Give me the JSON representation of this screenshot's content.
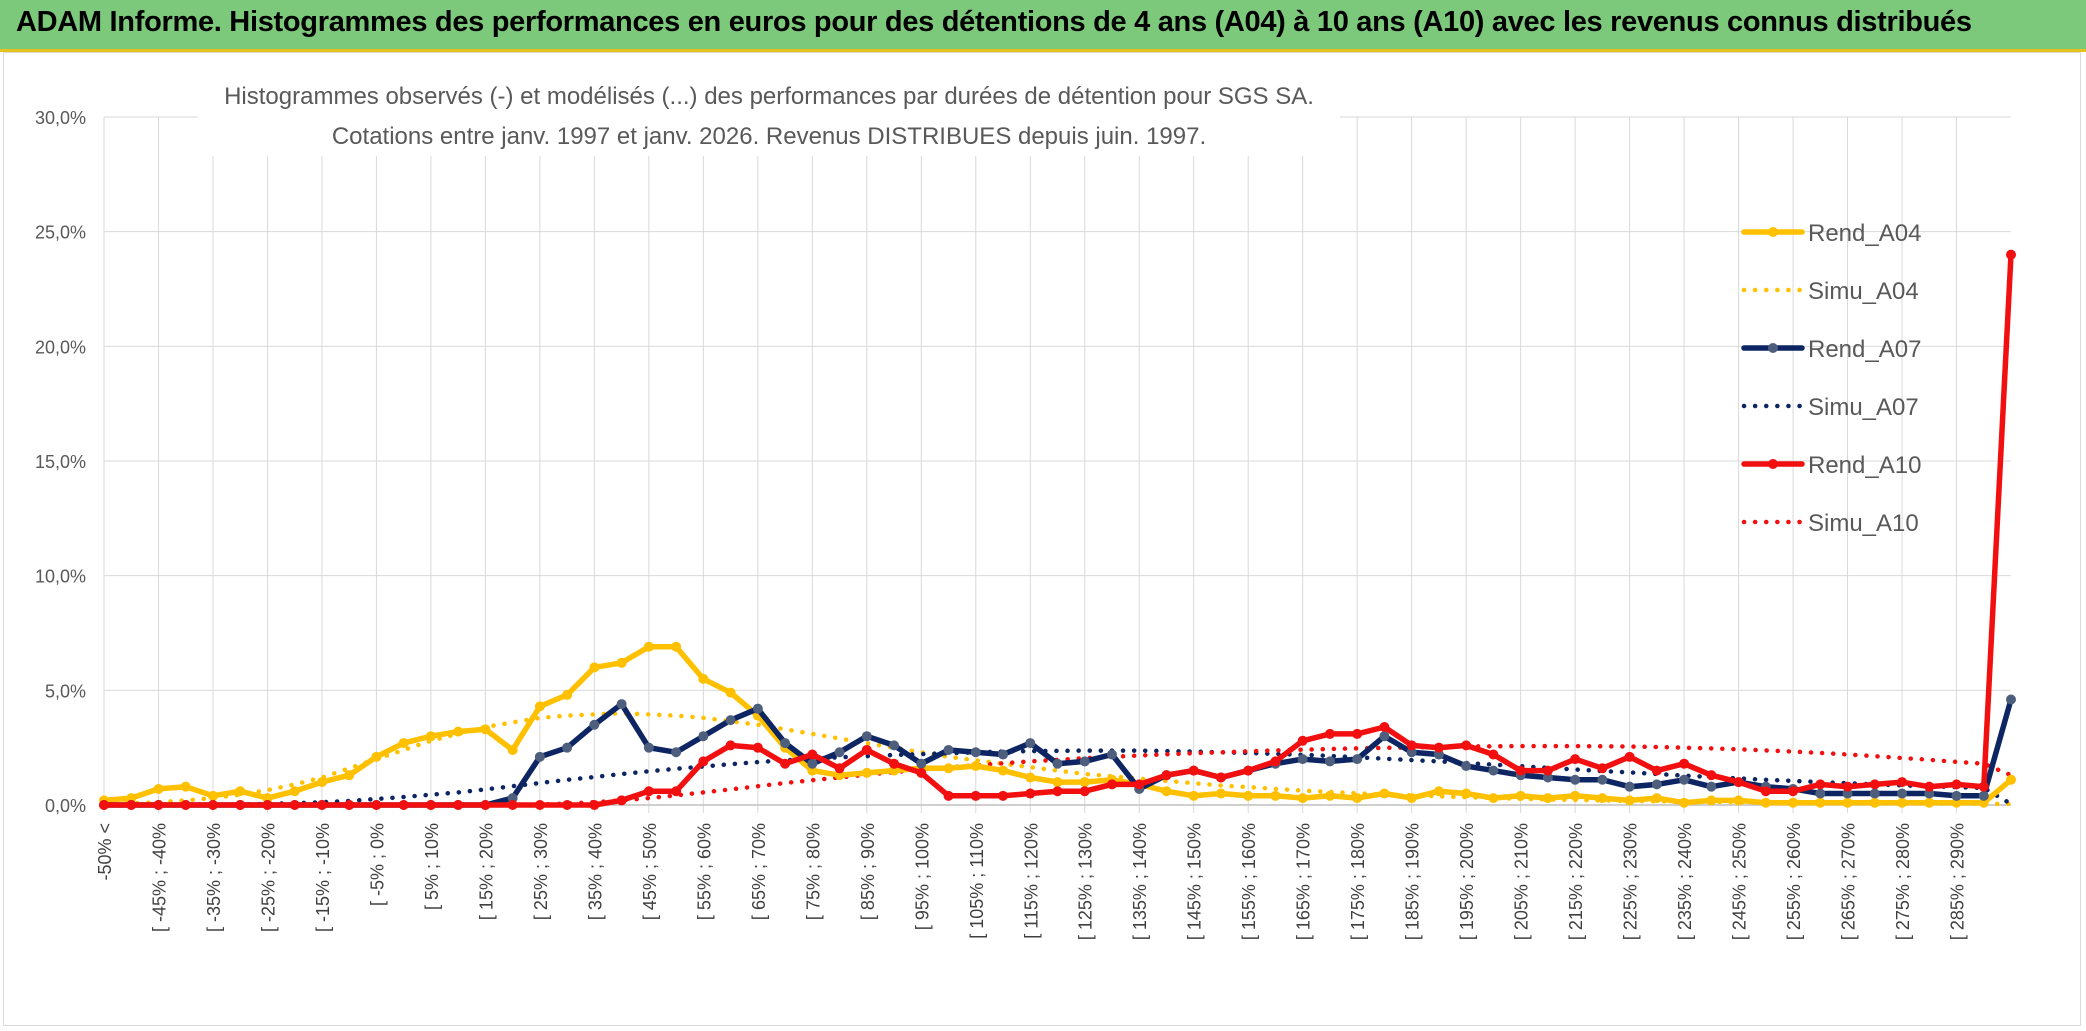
{
  "header": {
    "title": "ADAM Informe. Histogrammes des performances en euros pour des détentions de 4 ans (A04) à 10 ans (A10) avec les revenus connus distribués"
  },
  "colors": {
    "A04": "#ffc000",
    "A07": "#0d2562",
    "A07_marker": "#4e5f7d",
    "A10": "#f20f0f",
    "grid": "#d9d9d9",
    "banner": "#7dc97b"
  },
  "chart_data": {
    "type": "line",
    "title": "Histogrammes observés (-) et modélisés (...) des performances par durées de détention pour SGS SA.",
    "subtitle": "Cotations entre janv. 1997 et janv. 2026. Revenus DISTRIBUES depuis juin. 1997.",
    "xlabel": "",
    "ylabel": "",
    "ylim": [
      0,
      30
    ],
    "y_ticks": [
      "0,0%",
      "5,0%",
      "10,0%",
      "15,0%",
      "20,0%",
      "25,0%",
      "30,0%"
    ],
    "x_tick_labels": [
      "-50% <",
      "[ -45% ; -40%",
      "[ -35% ; -30%",
      "[ -25% ; -20%",
      "[ -15% ; -10%",
      "[ -5% ; 0%",
      "[ 5% ; 10%",
      "[ 15% ; 20%",
      "[ 25% ; 30%",
      "[ 35% ; 40%",
      "[ 45% ; 50%",
      "[ 55% ; 60%",
      "[ 65% ; 70%",
      "[ 75% ; 80%",
      "[ 85% ; 90%",
      "[ 95% ; 100%",
      "[ 105% ; 110%",
      "[ 115% ; 120%",
      "[ 125% ; 130%",
      "[ 135% ; 140%",
      "[ 145% ; 150%",
      "[ 155% ; 160%",
      "[ 165% ; 170%",
      "[ 175% ; 180%",
      "[ 185% ; 190%",
      "[ 195% ; 200%",
      "[ 205% ; 210%",
      "[ 215% ; 220%",
      "[ 225% ; 230%",
      "[ 235% ; 240%",
      "[ 245% ; 250%",
      "[ 255% ; 260%",
      "[ 265% ; 270%",
      "[ 275% ; 280%",
      "[ 285% ; 290%"
    ],
    "legend_position": "right",
    "series": [
      {
        "name": "Rend_A04",
        "style": "solid",
        "color": "#ffc000",
        "values": [
          0.2,
          0.3,
          0.7,
          0.8,
          0.4,
          0.6,
          0.3,
          0.6,
          1.0,
          1.3,
          2.1,
          2.7,
          3.0,
          3.2,
          3.3,
          2.4,
          4.3,
          4.8,
          6.0,
          6.2,
          6.9,
          6.9,
          5.5,
          4.9,
          3.9,
          2.5,
          1.5,
          1.3,
          1.4,
          1.5,
          1.6,
          1.6,
          1.7,
          1.5,
          1.2,
          1.0,
          1.0,
          1.1,
          0.9,
          0.6,
          0.4,
          0.5,
          0.4,
          0.4,
          0.3,
          0.4,
          0.3,
          0.5,
          0.3,
          0.6,
          0.5,
          0.3,
          0.4,
          0.3,
          0.4,
          0.3,
          0.2,
          0.3,
          0.1,
          0.2,
          0.2,
          0.1,
          0.1,
          0.1,
          0.1,
          0.1,
          0.1,
          0.1,
          0.1,
          0.1,
          1.1
        ]
      },
      {
        "name": "Simu_A04",
        "style": "dotted",
        "color": "#ffc000",
        "values": [
          0.05,
          0.08,
          0.12,
          0.2,
          0.3,
          0.45,
          0.65,
          0.9,
          1.2,
          1.6,
          2.0,
          2.4,
          2.8,
          3.1,
          3.4,
          3.6,
          3.8,
          3.9,
          3.95,
          4.0,
          3.95,
          3.9,
          3.8,
          3.65,
          3.5,
          3.3,
          3.1,
          2.9,
          2.7,
          2.5,
          2.3,
          2.1,
          1.95,
          1.8,
          1.65,
          1.5,
          1.35,
          1.25,
          1.15,
          1.05,
          0.95,
          0.85,
          0.78,
          0.7,
          0.63,
          0.57,
          0.51,
          0.46,
          0.42,
          0.38,
          0.34,
          0.3,
          0.27,
          0.24,
          0.22,
          0.2,
          0.18,
          0.16,
          0.14,
          0.13,
          0.12,
          0.11,
          0.1,
          0.09,
          0.08,
          0.07,
          0.07,
          0.06,
          0.06,
          0.05,
          0.05
        ]
      },
      {
        "name": "Rend_A07",
        "style": "solid",
        "color": "#0d2562",
        "values": [
          0,
          0,
          0,
          0,
          0,
          0,
          0,
          0,
          0,
          0,
          0,
          0,
          0,
          0,
          0,
          0.3,
          2.1,
          2.5,
          3.5,
          4.4,
          2.5,
          2.3,
          3.0,
          3.7,
          4.2,
          2.7,
          1.8,
          2.3,
          3.0,
          2.6,
          1.8,
          2.4,
          2.3,
          2.2,
          2.7,
          1.8,
          1.9,
          2.2,
          0.7,
          1.3,
          1.5,
          1.2,
          1.5,
          1.8,
          2.0,
          1.9,
          2.0,
          3.0,
          2.3,
          2.2,
          1.7,
          1.5,
          1.3,
          1.2,
          1.1,
          1.1,
          0.8,
          0.9,
          1.1,
          0.8,
          1.0,
          0.8,
          0.7,
          0.5,
          0.5,
          0.5,
          0.5,
          0.5,
          0.4,
          0.4,
          4.6
        ]
      },
      {
        "name": "Simu_A07",
        "style": "dotted",
        "color": "#0d2562",
        "values": [
          0,
          0,
          0,
          0,
          0,
          0.02,
          0.05,
          0.08,
          0.12,
          0.18,
          0.26,
          0.35,
          0.45,
          0.55,
          0.68,
          0.82,
          0.96,
          1.1,
          1.22,
          1.35,
          1.47,
          1.58,
          1.68,
          1.78,
          1.87,
          1.95,
          2.02,
          2.08,
          2.13,
          2.18,
          2.22,
          2.26,
          2.3,
          2.33,
          2.35,
          2.36,
          2.37,
          2.37,
          2.37,
          2.35,
          2.33,
          2.3,
          2.27,
          2.23,
          2.19,
          2.14,
          2.08,
          2.02,
          1.96,
          1.9,
          1.83,
          1.76,
          1.69,
          1.62,
          1.55,
          1.48,
          1.42,
          1.35,
          1.28,
          1.22,
          1.16,
          1.1,
          1.05,
          1.0,
          0.95,
          0.9,
          0.86,
          0.82,
          0.78,
          0.74,
          0.05
        ]
      },
      {
        "name": "Rend_A10",
        "style": "solid",
        "color": "#f20f0f",
        "values": [
          0,
          0,
          0,
          0,
          0,
          0,
          0,
          0,
          0,
          0,
          0,
          0,
          0,
          0,
          0,
          0,
          0,
          0,
          0,
          0.2,
          0.6,
          0.6,
          1.9,
          2.6,
          2.5,
          1.8,
          2.2,
          1.6,
          2.4,
          1.8,
          1.4,
          0.4,
          0.4,
          0.4,
          0.5,
          0.6,
          0.6,
          0.9,
          0.9,
          1.3,
          1.5,
          1.2,
          1.5,
          1.9,
          2.8,
          3.1,
          3.1,
          3.4,
          2.6,
          2.5,
          2.6,
          2.2,
          1.5,
          1.5,
          2.0,
          1.6,
          2.1,
          1.5,
          1.8,
          1.3,
          1.0,
          0.6,
          0.6,
          0.9,
          0.8,
          0.9,
          1.0,
          0.8,
          0.9,
          0.8,
          24.0
        ]
      },
      {
        "name": "Simu_A10",
        "style": "dotted",
        "color": "#f20f0f",
        "values": [
          0,
          0,
          0,
          0,
          0,
          0,
          0,
          0,
          0,
          0,
          0,
          0,
          0,
          0,
          0,
          0,
          0.02,
          0.06,
          0.12,
          0.2,
          0.3,
          0.42,
          0.55,
          0.68,
          0.82,
          0.96,
          1.08,
          1.2,
          1.32,
          1.43,
          1.54,
          1.64,
          1.73,
          1.82,
          1.9,
          1.97,
          2.04,
          2.1,
          2.16,
          2.21,
          2.26,
          2.3,
          2.34,
          2.38,
          2.41,
          2.44,
          2.47,
          2.49,
          2.51,
          2.53,
          2.55,
          2.56,
          2.57,
          2.57,
          2.57,
          2.56,
          2.55,
          2.53,
          2.5,
          2.47,
          2.43,
          2.38,
          2.33,
          2.27,
          2.2,
          2.13,
          2.05,
          1.97,
          1.88,
          1.8,
          1.3
        ]
      }
    ]
  }
}
